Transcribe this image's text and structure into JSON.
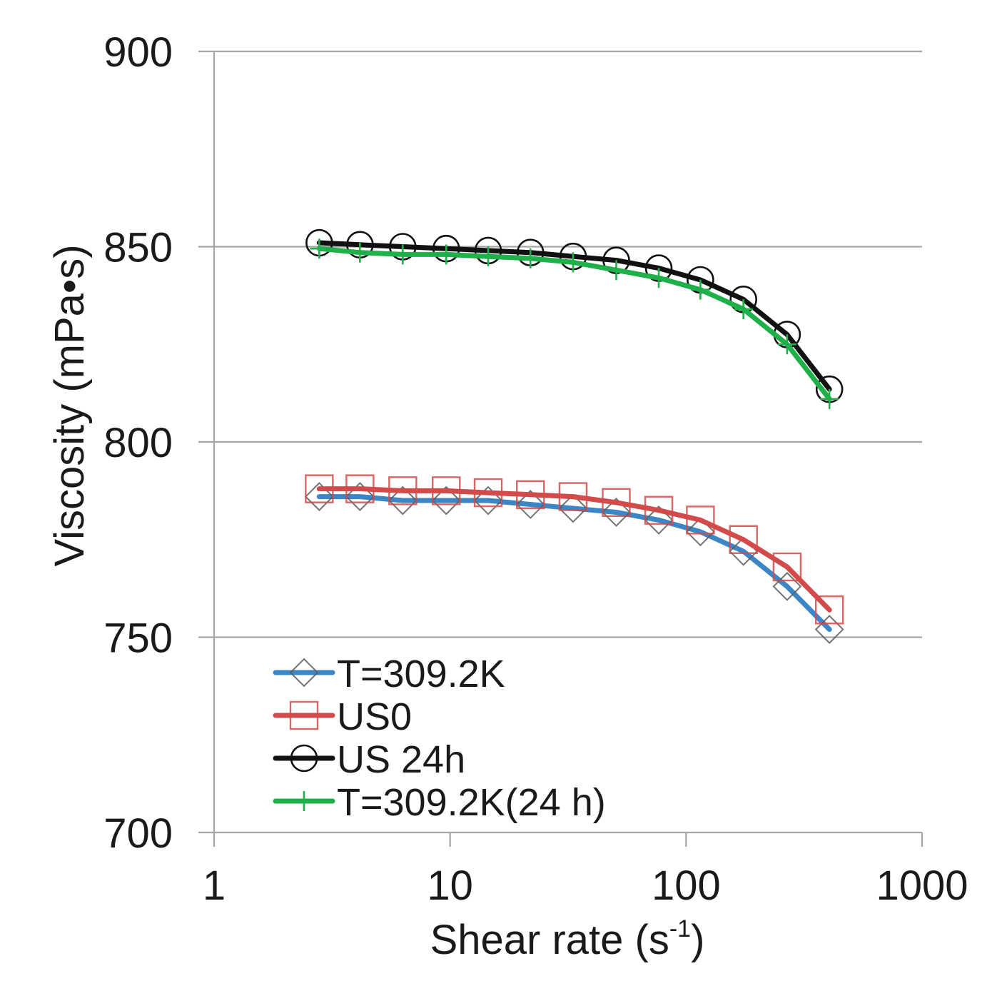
{
  "chart_data": {
    "type": "line",
    "title": "",
    "xlabel": "Shear rate (s",
    "xlabel_sup": "-1",
    "xlabel_end": ")",
    "ylabel": "Viscosity (mPa•s)",
    "xscale": "log",
    "xlim": [
      1,
      1000
    ],
    "ylim": [
      700,
      900
    ],
    "x_ticks": [
      1,
      10,
      100,
      1000
    ],
    "x_tick_labels": [
      "1",
      "10",
      "100",
      "1000"
    ],
    "y_ticks": [
      700,
      750,
      800,
      850,
      900
    ],
    "y_tick_labels": [
      "700",
      "750",
      "800",
      "850",
      "900"
    ],
    "grid": "horizontal",
    "legend_position": "bottom-left",
    "x": [
      2.79,
      4.15,
      6.3,
      9.63,
      14.5,
      21.9,
      33.2,
      50.6,
      76.6,
      115,
      175,
      268,
      405
    ],
    "series": [
      {
        "name": "T=309.2K",
        "color": "#3d86c6",
        "marker": "diamond",
        "values": [
          786,
          786,
          785,
          785,
          785,
          784,
          783,
          782,
          780,
          777,
          772,
          763,
          752
        ]
      },
      {
        "name": "US0",
        "color": "#d24a4a",
        "marker": "square",
        "values": [
          788,
          788,
          787.5,
          787.5,
          787,
          786.5,
          786,
          784.5,
          782.5,
          780,
          775,
          768,
          757
        ]
      },
      {
        "name": "US 24h",
        "color": "#111111",
        "marker": "circle",
        "values": [
          851,
          850.5,
          850,
          849.5,
          849,
          848.5,
          847.5,
          846.5,
          844.5,
          841.5,
          836.5,
          827.5,
          813.5
        ]
      },
      {
        "name": "T=309.2K(24 h)",
        "color": "#1fb04a",
        "marker": "plus",
        "values": [
          849.5,
          848.5,
          848,
          848,
          847.5,
          847,
          846,
          844,
          842,
          839,
          834,
          825,
          811
        ]
      }
    ]
  }
}
